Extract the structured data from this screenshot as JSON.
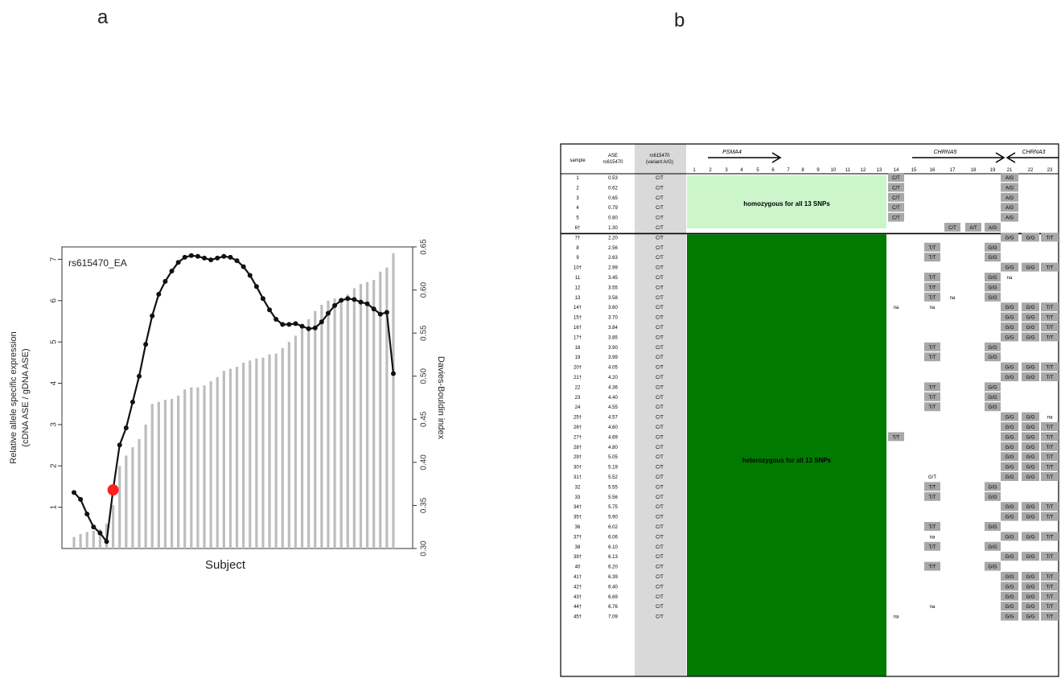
{
  "panels": {
    "a": "a",
    "b": "b"
  },
  "chart_data": {
    "type": "bar",
    "title": "rs615470_EA",
    "xlabel": "Subject",
    "ylabel": "Relative allele specific expression\n(cDNA ASE / gDNA ASE)",
    "y2label": "Davies-Bouldin index",
    "ylim": [
      0,
      7.3
    ],
    "y2lim": [
      0.3,
      0.65
    ],
    "yticks": [
      1,
      2,
      3,
      4,
      5,
      6,
      7
    ],
    "y2ticks": [
      "0.30",
      "0.35",
      "0.40",
      "0.45",
      "0.50",
      "0.55",
      "0.60",
      "0.65"
    ],
    "grid": false,
    "bar_color": "#bdbdbd",
    "line_color": "#111111",
    "highlight_color": "#ff2020",
    "series": [
      {
        "type": "bar",
        "values": [
          0.28,
          0.35,
          0.4,
          0.43,
          0.47,
          0.6,
          1.05,
          2.0,
          2.25,
          2.45,
          2.65,
          3.0,
          3.5,
          3.55,
          3.6,
          3.62,
          3.7,
          3.85,
          3.9,
          3.9,
          3.95,
          4.05,
          4.15,
          4.3,
          4.35,
          4.4,
          4.5,
          4.55,
          4.6,
          4.62,
          4.7,
          4.72,
          4.85,
          5.0,
          5.15,
          5.35,
          5.55,
          5.75,
          5.9,
          6.0,
          6.05,
          6.05,
          6.15,
          6.3,
          6.4,
          6.45,
          6.5,
          6.7,
          6.8,
          7.15
        ]
      },
      {
        "type": "line",
        "axis": "right",
        "values": [
          0.365,
          0.357,
          0.34,
          0.325,
          0.318,
          0.308,
          0.368,
          0.42,
          0.44,
          0.47,
          0.5,
          0.537,
          0.57,
          0.595,
          0.61,
          0.622,
          0.632,
          0.638,
          0.64,
          0.639,
          0.637,
          0.635,
          0.637,
          0.639,
          0.638,
          0.634,
          0.627,
          0.617,
          0.604,
          0.59,
          0.577,
          0.566,
          0.56,
          0.56,
          0.561,
          0.558,
          0.555,
          0.556,
          0.563,
          0.573,
          0.582,
          0.588,
          0.59,
          0.589,
          0.586,
          0.584,
          0.578,
          0.572,
          0.574,
          0.503
        ]
      }
    ],
    "highlight_index": 6
  },
  "table": {
    "header": {
      "sample": "sample",
      "ase": "ASE\nrs615470",
      "variant": "rs615470\n(variant:A/G)",
      "genes": [
        {
          "name": "PSMA4",
          "arrow": "right"
        },
        {
          "name": "CHRNA5",
          "arrow": "right"
        },
        {
          "name": "CHRNA3",
          "arrow": "left"
        }
      ],
      "snp_numbers": [
        "1",
        "2",
        "3",
        "4",
        "5",
        "6",
        "7",
        "8",
        "9",
        "10",
        "11",
        "12",
        "13",
        "14",
        "15",
        "16",
        "17",
        "18",
        "19",
        "21",
        "22",
        "23"
      ]
    },
    "band_labels": {
      "homozygous": "homozygous for all 13 SNPs",
      "heterozygous": "heterozygous for all 13 SNPs"
    },
    "colors": {
      "homozygous": "#ccf5cc",
      "heterozygous": "#007a00",
      "cell": "#a8a8a8",
      "variant_col": "#d9d9d9"
    },
    "rows": [
      {
        "sample": "1",
        "ase": "0.53",
        "variant": "C/T",
        "c14": "C/T",
        "c21": "A/G"
      },
      {
        "sample": "2",
        "ase": "0.62",
        "variant": "C/T",
        "c14": "C/T",
        "c21": "A/G"
      },
      {
        "sample": "3",
        "ase": "0.65",
        "variant": "C/T",
        "c14": "C/T",
        "c21": "A/G"
      },
      {
        "sample": "4",
        "ase": "0.79",
        "variant": "C/T",
        "c14": "C/T",
        "c21": "A/G"
      },
      {
        "sample": "5",
        "ase": "0.80",
        "variant": "C/T",
        "c14": "C/T",
        "c21": "A/G"
      },
      {
        "sample": "6†",
        "ase": "1.30",
        "variant": "C/T",
        "c17": "C/T",
        "c18": "A/T",
        "c19": "A/G"
      },
      {
        "sample": "7†",
        "ase": "2.20",
        "variant": "C/T",
        "c21": "G/G",
        "c22": "G/G",
        "c23": "T/T"
      },
      {
        "sample": "8",
        "ase": "2.56",
        "variant": "C/T",
        "c16": "T/T",
        "c19": "G/G"
      },
      {
        "sample": "9",
        "ase": "2.63",
        "variant": "C/T",
        "c16": "T/T",
        "c19": "G/G"
      },
      {
        "sample": "10†",
        "ase": "2.99",
        "variant": "C/T",
        "c21": "G/G",
        "c22": "G/G",
        "c23": "T/T"
      },
      {
        "sample": "11",
        "ase": "3.45",
        "variant": "C/T",
        "c16": "T/T",
        "c19": "G/G",
        "c21t": "na"
      },
      {
        "sample": "12",
        "ase": "3.55",
        "variant": "C/T",
        "c16": "T/T",
        "c19": "G/G"
      },
      {
        "sample": "13",
        "ase": "3.58",
        "variant": "C/T",
        "c16": "T/T",
        "c17t": "na",
        "c19": "G/G"
      },
      {
        "sample": "14†",
        "ase": "3.60",
        "variant": "C/T",
        "c14t": "na",
        "c16t": "na",
        "c21": "G/G",
        "c22": "G/G",
        "c23": "T/T"
      },
      {
        "sample": "15†",
        "ase": "3.70",
        "variant": "C/T",
        "c21": "G/G",
        "c22": "G/G",
        "c23": "T/T"
      },
      {
        "sample": "16†",
        "ase": "3.84",
        "variant": "C/T",
        "c21": "G/G",
        "c22": "G/G",
        "c23": "T/T"
      },
      {
        "sample": "17†",
        "ase": "3.85",
        "variant": "C/T",
        "c21": "G/G",
        "c22": "G/G",
        "c23": "T/T"
      },
      {
        "sample": "18",
        "ase": "3.90",
        "variant": "C/T",
        "c16": "T/T",
        "c19": "G/G"
      },
      {
        "sample": "19",
        "ase": "3.99",
        "variant": "C/T",
        "c16": "T/T",
        "c19": "G/G"
      },
      {
        "sample": "20†",
        "ase": "4.05",
        "variant": "C/T",
        "c21": "G/G",
        "c22": "G/G",
        "c23": "T/T"
      },
      {
        "sample": "21†",
        "ase": "4.20",
        "variant": "C/T",
        "c21": "G/G",
        "c22": "G/G",
        "c23": "T/T"
      },
      {
        "sample": "22",
        "ase": "4.36",
        "variant": "C/T",
        "c16": "T/T",
        "c19": "G/G"
      },
      {
        "sample": "23",
        "ase": "4.40",
        "variant": "C/T",
        "c16": "T/T",
        "c19": "G/G"
      },
      {
        "sample": "24",
        "ase": "4.55",
        "variant": "C/T",
        "c16": "T/T",
        "c19": "G/G"
      },
      {
        "sample": "25†",
        "ase": "4.57",
        "variant": "C/T",
        "c21": "G/G",
        "c22": "G/G",
        "c23t": "na"
      },
      {
        "sample": "26†",
        "ase": "4.60",
        "variant": "C/T",
        "c21": "G/G",
        "c22": "G/G",
        "c23": "T/T"
      },
      {
        "sample": "27†",
        "ase": "4.69",
        "variant": "C/T",
        "c14": "T/T",
        "c21": "G/G",
        "c22": "G/G",
        "c23": "T/T"
      },
      {
        "sample": "28†",
        "ase": "4.80",
        "variant": "C/T",
        "c21": "G/G",
        "c22": "G/G",
        "c23": "T/T"
      },
      {
        "sample": "29†",
        "ase": "5.05",
        "variant": "C/T",
        "c21": "G/G",
        "c22": "G/G",
        "c23": "T/T"
      },
      {
        "sample": "30†",
        "ase": "5.19",
        "variant": "C/T",
        "c21": "G/G",
        "c22": "G/G",
        "c23": "T/T"
      },
      {
        "sample": "31†",
        "ase": "5.52",
        "variant": "C/T",
        "c16t": "G/T",
        "c21": "G/G",
        "c22": "G/G",
        "c23": "T/T"
      },
      {
        "sample": "32",
        "ase": "5.55",
        "variant": "C/T",
        "c16": "T/T",
        "c19": "G/G"
      },
      {
        "sample": "33",
        "ase": "5.56",
        "variant": "C/T",
        "c16": "T/T",
        "c19": "G/G"
      },
      {
        "sample": "34†",
        "ase": "5.75",
        "variant": "C/T",
        "c21": "G/G",
        "c22": "G/G",
        "c23": "T/T"
      },
      {
        "sample": "35†",
        "ase": "5.90",
        "variant": "C/T",
        "c21": "G/G",
        "c22": "G/G",
        "c23": "T/T"
      },
      {
        "sample": "36",
        "ase": "6.02",
        "variant": "C/T",
        "c16": "T/T",
        "c19": "G/G"
      },
      {
        "sample": "37†",
        "ase": "6.06",
        "variant": "C/T",
        "c16t": "na",
        "c21": "G/G",
        "c22": "G/G",
        "c23": "T/T"
      },
      {
        "sample": "38",
        "ase": "6.10",
        "variant": "C/T",
        "c16": "T/T",
        "c19": "G/G"
      },
      {
        "sample": "39†",
        "ase": "6.13",
        "variant": "C/T",
        "c21": "G/G",
        "c22": "G/G",
        "c23": "T/T"
      },
      {
        "sample": "40",
        "ase": "6.20",
        "variant": "C/T",
        "c16": "T/T",
        "c19": "G/G"
      },
      {
        "sample": "41†",
        "ase": "6.39",
        "variant": "C/T",
        "c21": "G/G",
        "c22": "G/G",
        "c23": "T/T"
      },
      {
        "sample": "42†",
        "ase": "6.40",
        "variant": "C/T",
        "c21": "G/G",
        "c22": "G/G",
        "c23": "T/T"
      },
      {
        "sample": "43†",
        "ase": "6.69",
        "variant": "C/T",
        "c21": "G/G",
        "c22": "G/G",
        "c23": "T/T"
      },
      {
        "sample": "44†",
        "ase": "6.76",
        "variant": "C/T",
        "c16t": "na",
        "c21": "G/G",
        "c22": "G/G",
        "c23": "T/T"
      },
      {
        "sample": "45†",
        "ase": "7.09",
        "variant": "C/T",
        "c14t": "na",
        "c21": "G/G",
        "c22": "G/G",
        "c23": "T/T"
      }
    ]
  }
}
